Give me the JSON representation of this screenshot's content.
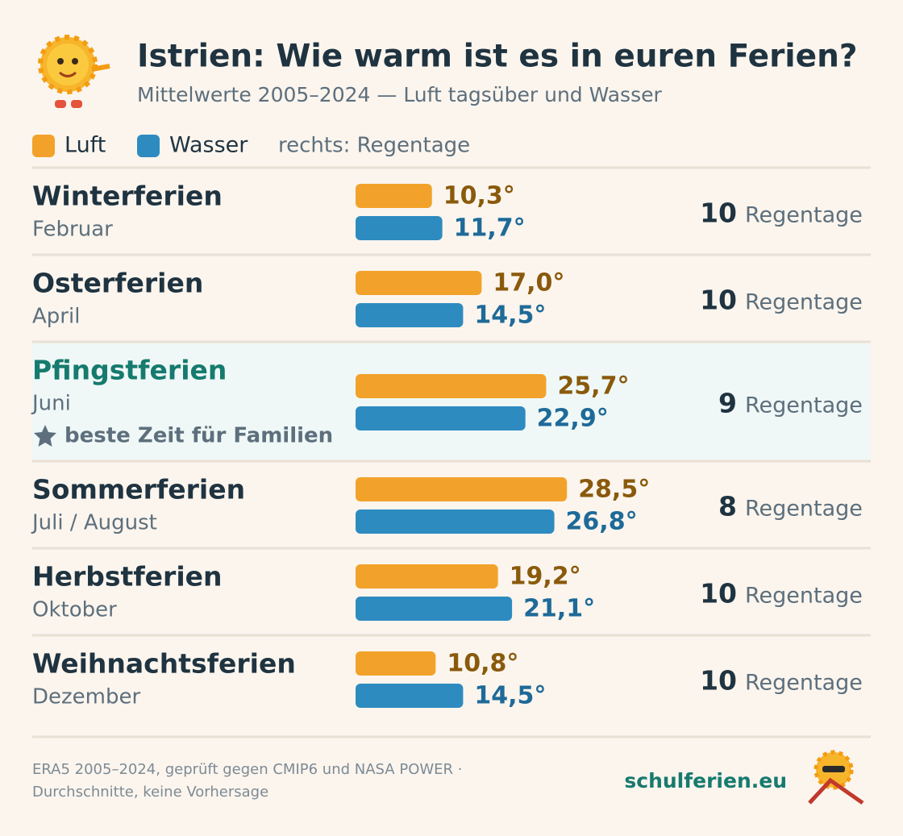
{
  "chart_data": {
    "type": "bar",
    "title": "Istrien: Wie warm ist es in euren Ferien?",
    "subtitle": "Mittelwerte 2005–2024 — Luft tagsüber und Wasser",
    "legend_note": "rechts: Regentage",
    "categories": [
      "Winterferien",
      "Osterferien",
      "Pfingstferien",
      "Sommerferien",
      "Herbstferien",
      "Weihnachtsferien"
    ],
    "category_subtitles": [
      "Februar",
      "April",
      "Juni",
      "Juli / August",
      "Oktober",
      "Dezember"
    ],
    "notes": [
      null,
      null,
      "beste Zeit für Familien",
      null,
      null,
      null
    ],
    "series": [
      {
        "name": "Luft",
        "color": "#f2a22a",
        "label_color": "#8a5a0c",
        "values": [
          10.3,
          17.0,
          25.7,
          28.5,
          19.2,
          10.8
        ],
        "value_labels": [
          "10,3°",
          "17,0°",
          "25,7°",
          "28,5°",
          "19,2°",
          "10,8°"
        ]
      },
      {
        "name": "Wasser",
        "color": "#2e8bc0",
        "label_color": "#1e6a98",
        "values": [
          11.7,
          14.5,
          22.9,
          26.8,
          21.1,
          14.5
        ],
        "value_labels": [
          "11,7°",
          "14,5°",
          "22,9°",
          "26,8°",
          "21,1°",
          "14,5°"
        ]
      }
    ],
    "rain_days": [
      10,
      10,
      9,
      8,
      10,
      10
    ],
    "rain_label": "Regentage",
    "source": [
      "ERA5 2005–2024, geprüft gegen CMIP6 und NASA POWER ·",
      "Durchschnitte, keine Vorhersage"
    ],
    "brand": "schulferien.eu"
  }
}
